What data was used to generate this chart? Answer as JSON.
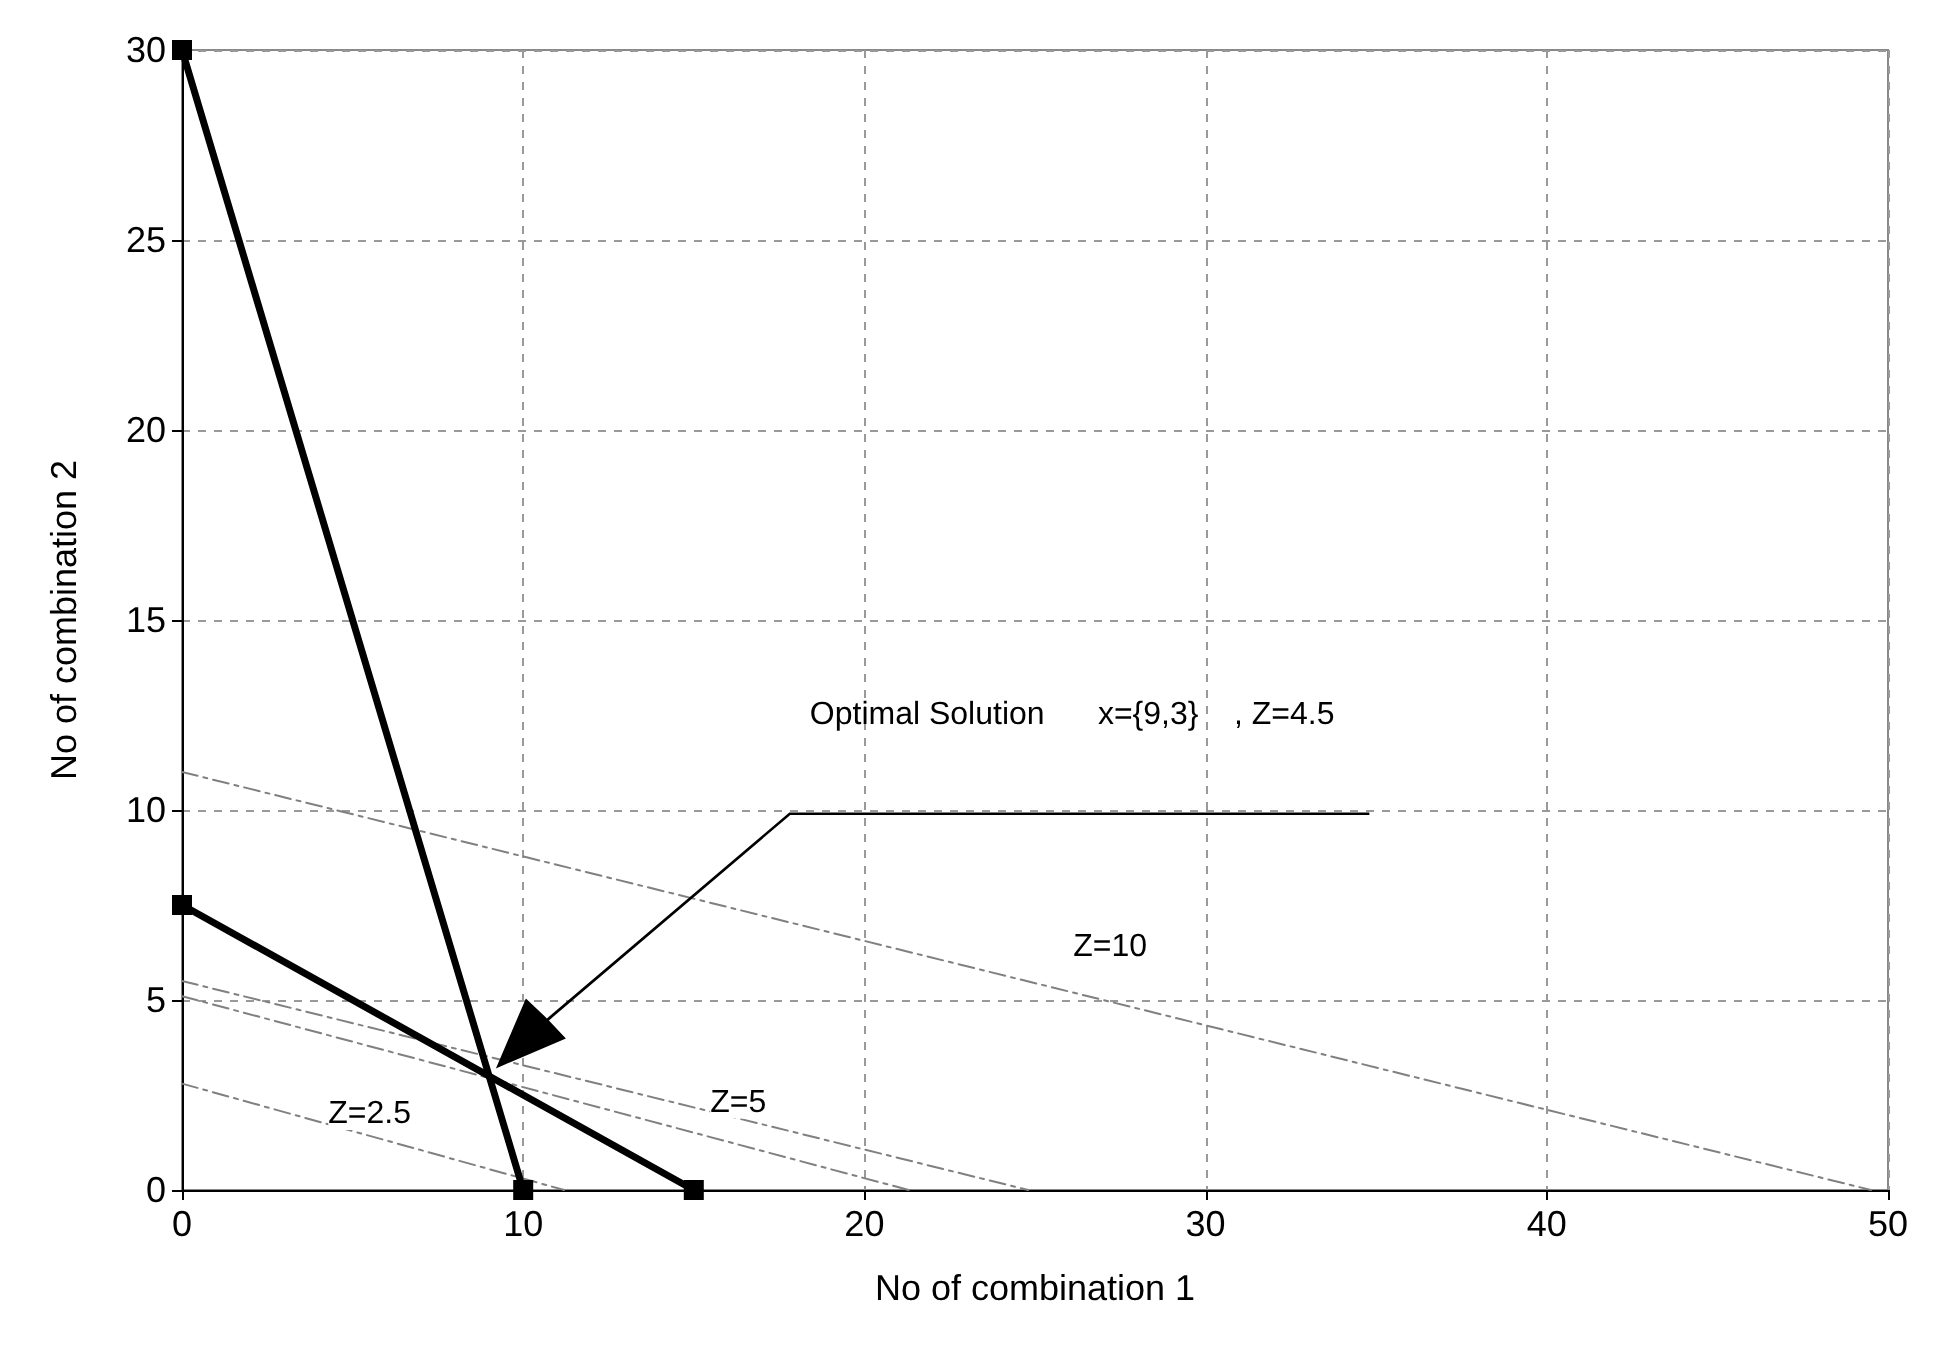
{
  "chart_data": {
    "type": "line",
    "xlabel": "No of combination 1",
    "ylabel": "No of combination 2",
    "xlim": [
      0,
      50
    ],
    "ylim": [
      0,
      30
    ],
    "xticks": [
      0,
      10,
      20,
      30,
      40,
      50
    ],
    "yticks": [
      0,
      5,
      10,
      15,
      20,
      25,
      30
    ],
    "grid": true,
    "marker": "square",
    "series": [
      {
        "color": "#000000",
        "x": [
          0,
          10
        ],
        "values": [
          30,
          0
        ]
      },
      {
        "color": "#000000",
        "x": [
          0,
          15
        ],
        "values": [
          7.5,
          0
        ]
      },
      {
        "color": "#808080",
        "x": [
          0,
          11.2
        ],
        "values": [
          2.8,
          0
        ],
        "marker": "none",
        "line_style": "dashed"
      },
      {
        "color": "#808080",
        "x": [
          0,
          21.3
        ],
        "values": [
          5.1,
          0
        ],
        "marker": "none",
        "line_style": "dashed"
      },
      {
        "color": "#808080",
        "x": [
          0,
          24.8
        ],
        "values": [
          5.5,
          0
        ],
        "marker": "none",
        "line_style": "dashed"
      },
      {
        "color": "#808080",
        "x": [
          0,
          49.5
        ],
        "values": [
          11,
          0
        ],
        "marker": "none",
        "line_style": "dashed"
      }
    ],
    "annotations": [
      "Optimal Solution      x={9,3}    , Z=4.5",
      {
        "text": "Z=2.5",
        "x": 5.5,
        "y": 2
      },
      {
        "text": "Z=5",
        "x": 16.3,
        "y": 2.3
      },
      {
        "text": "Z=10",
        "x": 27.2,
        "y": 6.4
      }
    ]
  }
}
